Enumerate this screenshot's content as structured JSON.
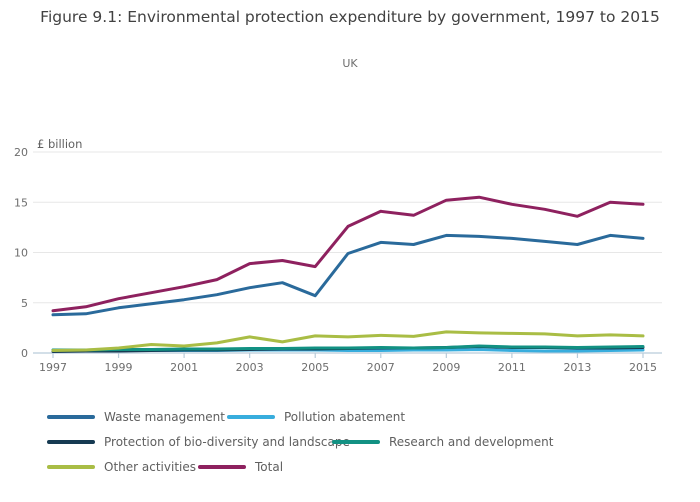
{
  "header": {
    "title": "Figure 9.1: Environmental protection expenditure by government, 1997 to 2015",
    "subtitle": "UK"
  },
  "chart_data": {
    "type": "line",
    "title": "Figure 9.1: Environmental protection expenditure by government, 1997 to 2015",
    "subtitle": "UK",
    "xlabel": "",
    "ylabel": "£ billion",
    "ylim": [
      0,
      20
    ],
    "y_ticks": [
      0,
      5,
      10,
      15,
      20
    ],
    "x": [
      1997,
      1998,
      1999,
      2000,
      2001,
      2002,
      2003,
      2004,
      2005,
      2006,
      2007,
      2008,
      2009,
      2010,
      2011,
      2012,
      2013,
      2014,
      2015
    ],
    "x_tick_labels": [
      1997,
      1999,
      2001,
      2003,
      2005,
      2007,
      2009,
      2011,
      2013,
      2015
    ],
    "grid": true,
    "legend_position": "bottom",
    "series": [
      {
        "name": "Waste management",
        "color": "#2A6A9B",
        "values": [
          3.8,
          3.9,
          4.5,
          4.9,
          5.3,
          5.8,
          6.5,
          7.0,
          5.7,
          9.9,
          11.0,
          10.8,
          11.7,
          11.6,
          11.4,
          11.1,
          10.8,
          11.7,
          11.4
        ]
      },
      {
        "name": "Pollution abatement",
        "color": "#38ADDD",
        "values": [
          0.3,
          0.3,
          0.3,
          0.25,
          0.25,
          0.25,
          0.3,
          0.3,
          0.3,
          0.25,
          0.25,
          0.3,
          0.3,
          0.35,
          0.25,
          0.2,
          0.2,
          0.25,
          0.3
        ]
      },
      {
        "name": "Protection of bio-diversity and landscape",
        "color": "#163A52",
        "values": [
          0.15,
          0.2,
          0.2,
          0.25,
          0.3,
          0.3,
          0.35,
          0.4,
          0.4,
          0.45,
          0.5,
          0.5,
          0.55,
          0.65,
          0.55,
          0.55,
          0.5,
          0.5,
          0.55
        ]
      },
      {
        "name": "Research and development",
        "color": "#129183",
        "values": [
          0.3,
          0.3,
          0.35,
          0.35,
          0.4,
          0.4,
          0.45,
          0.45,
          0.5,
          0.5,
          0.55,
          0.5,
          0.55,
          0.7,
          0.6,
          0.6,
          0.55,
          0.6,
          0.65
        ]
      },
      {
        "name": "Other activities",
        "color": "#A9BD45",
        "values": [
          0.25,
          0.3,
          0.5,
          0.85,
          0.7,
          1.0,
          1.6,
          1.1,
          1.7,
          1.6,
          1.75,
          1.65,
          2.1,
          2.0,
          1.95,
          1.9,
          1.7,
          1.8,
          1.7
        ]
      },
      {
        "name": "Total",
        "color": "#8E215F",
        "values": [
          4.2,
          4.6,
          5.4,
          6.0,
          6.6,
          7.3,
          8.9,
          9.2,
          8.6,
          12.6,
          14.1,
          13.7,
          15.2,
          15.5,
          14.8,
          14.3,
          13.6,
          15.0,
          14.8
        ]
      }
    ]
  },
  "colors": {
    "gridline": "#e7e7e7",
    "axis_line": "#b9ccda",
    "tick_label": "#6e6e6e"
  }
}
